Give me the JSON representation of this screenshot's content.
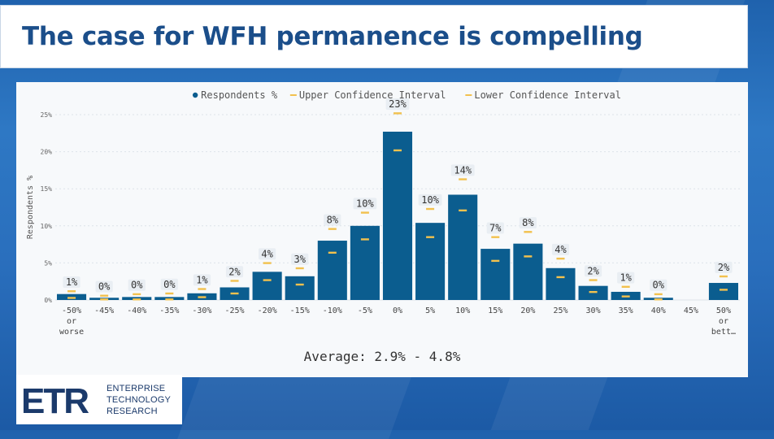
{
  "slide": {
    "title": "The case for WFH permanence is compelling",
    "average_text": "Average: 2.9% - 4.8%"
  },
  "logo": {
    "mark": "ETR",
    "lines": [
      "ENTERPRISE",
      "TECHNOLOGY",
      "RESEARCH"
    ]
  },
  "colors": {
    "bar": "#0b5d8f",
    "confidence_marker": "#f2c14e",
    "title": "#1b4e8a"
  },
  "chart_data": {
    "type": "bar",
    "ylabel": "Respondents %",
    "xlabel": "",
    "ylim": [
      0,
      25
    ],
    "yticks": [
      "0%",
      "5%",
      "10%",
      "15%",
      "20%",
      "25%"
    ],
    "grid": true,
    "legend_position": "top-center",
    "legend": [
      {
        "name": "Respondents %",
        "kind": "dot"
      },
      {
        "name": "Upper Confidence Interval",
        "kind": "dash"
      },
      {
        "name": "Lower Confidence Interval",
        "kind": "dash"
      }
    ],
    "categories": [
      [
        "-50%",
        "or",
        "worse"
      ],
      [
        "-45%"
      ],
      [
        "-40%"
      ],
      [
        "-35%"
      ],
      [
        "-30%"
      ],
      [
        "-25%"
      ],
      [
        "-20%"
      ],
      [
        "-15%"
      ],
      [
        "-10%"
      ],
      [
        "-5%"
      ],
      [
        "0%"
      ],
      [
        "5%"
      ],
      [
        "10%"
      ],
      [
        "15%"
      ],
      [
        "20%"
      ],
      [
        "25%"
      ],
      [
        "30%"
      ],
      [
        "35%"
      ],
      [
        "40%"
      ],
      [
        "45%"
      ],
      [
        "50%",
        "or",
        "bett…"
      ]
    ],
    "series": [
      {
        "name": "Respondents %",
        "values": [
          0.8,
          0.3,
          0.4,
          0.4,
          0.9,
          1.7,
          3.8,
          3.2,
          8.0,
          10.0,
          22.7,
          10.4,
          14.2,
          6.9,
          7.6,
          4.3,
          1.9,
          1.1,
          0.3,
          0,
          2.3
        ]
      },
      {
        "name": "Upper Confidence Interval",
        "values": [
          1.2,
          0.6,
          0.8,
          0.9,
          1.5,
          2.6,
          5.0,
          4.3,
          9.6,
          11.8,
          25.2,
          12.3,
          16.3,
          8.5,
          9.2,
          5.6,
          2.7,
          1.8,
          0.8,
          null,
          3.2
        ]
      },
      {
        "name": "Lower Confidence Interval",
        "values": [
          0.3,
          0.1,
          0.1,
          0.1,
          0.4,
          0.9,
          2.7,
          2.1,
          6.4,
          8.2,
          20.2,
          8.5,
          12.1,
          5.3,
          5.9,
          3.1,
          1.1,
          0.5,
          0.1,
          null,
          1.4
        ]
      }
    ],
    "data_labels": [
      "1%",
      "0%",
      "0%",
      "0%",
      "1%",
      "2%",
      "4%",
      "3%",
      "8%",
      "10%",
      "23%",
      "10%",
      "14%",
      "7%",
      "8%",
      "4%",
      "2%",
      "1%",
      "0%",
      "",
      "2%"
    ]
  }
}
